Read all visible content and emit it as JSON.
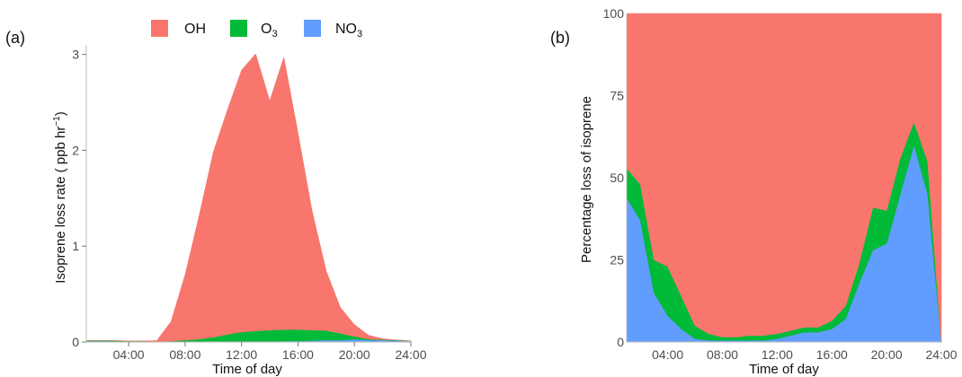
{
  "legend": {
    "entries": [
      {
        "label": "OH",
        "color": "#F8766D"
      },
      {
        "label": "O",
        "sub": "3",
        "color": "#00BA38"
      },
      {
        "label": "NO",
        "sub": "3",
        "color": "#619CFF"
      }
    ]
  },
  "chart_data": [
    {
      "panel_label": "(a)",
      "type": "area",
      "stacked": true,
      "xlabel": "Time of day",
      "ylabel": "Isoprene loss rate ( ppb hr",
      "ylabel_sup": "−1",
      "ylabel_end": ")",
      "x": [
        1,
        2,
        3,
        4,
        5,
        6,
        7,
        8,
        9,
        10,
        11,
        12,
        13,
        14,
        15,
        16,
        17,
        18,
        19,
        20,
        21,
        22,
        23,
        24
      ],
      "xlim": [
        1,
        24
      ],
      "ylim": [
        0,
        3.1
      ],
      "xticks": [
        4,
        8,
        12,
        16,
        20,
        24
      ],
      "xtick_labels": [
        "04:00",
        "08:00",
        "12:00",
        "16:00",
        "20:00",
        "24:00"
      ],
      "yticks": [
        0,
        1,
        2,
        3
      ],
      "ytick_labels": [
        "0",
        "1",
        "2",
        "3"
      ],
      "series": [
        {
          "name": "NO3",
          "color": "#619CFF",
          "values": [
            0.01,
            0.01,
            0.01,
            0.005,
            0.005,
            0,
            0,
            0,
            0,
            0,
            0,
            0.005,
            0.005,
            0.005,
            0.01,
            0.01,
            0.015,
            0.02,
            0.02,
            0.03,
            0.02,
            0.02,
            0.015,
            0.01
          ]
        },
        {
          "name": "O3",
          "color": "#00BA38",
          "values": [
            0.005,
            0.005,
            0.005,
            0.005,
            0.005,
            0.005,
            0.01,
            0.02,
            0.03,
            0.05,
            0.08,
            0.1,
            0.11,
            0.12,
            0.12,
            0.12,
            0.11,
            0.1,
            0.07,
            0.03,
            0.01,
            0.005,
            0.005,
            0
          ]
        },
        {
          "name": "OH",
          "color": "#F8766D",
          "values": [
            0,
            0,
            0,
            0,
            0,
            0.01,
            0.2,
            0.68,
            1.29,
            1.93,
            2.34,
            2.73,
            2.89,
            2.39,
            2.84,
            2.05,
            1.24,
            0.62,
            0.27,
            0.12,
            0.04,
            0.01,
            0,
            0
          ]
        }
      ]
    },
    {
      "panel_label": "(b)",
      "type": "area",
      "stacked": true,
      "xlabel": "Time of day",
      "ylabel": "Percentage loss of isoprene",
      "x": [
        1,
        2,
        3,
        4,
        5,
        6,
        7,
        8,
        9,
        10,
        11,
        12,
        13,
        14,
        15,
        16,
        17,
        18,
        19,
        20,
        21,
        22,
        23,
        24
      ],
      "xlim": [
        1,
        24
      ],
      "ylim": [
        0,
        100
      ],
      "xticks": [
        4,
        8,
        12,
        16,
        20,
        24
      ],
      "xtick_labels": [
        "04:00",
        "08:00",
        "12:00",
        "16:00",
        "20:00",
        "24:00"
      ],
      "yticks": [
        0,
        25,
        50,
        75,
        100
      ],
      "ytick_labels": [
        "0",
        "25",
        "50",
        "75",
        "100"
      ],
      "series": [
        {
          "name": "NO3",
          "color": "#619CFF",
          "values": [
            44,
            37,
            15,
            8,
            4,
            1,
            0.5,
            0.5,
            0.5,
            0.5,
            0.5,
            1,
            2,
            3,
            3,
            4,
            7,
            18,
            28,
            30,
            45,
            60,
            45,
            0
          ]
        },
        {
          "name": "O3",
          "color": "#00BA38",
          "values": [
            9,
            11,
            10,
            15,
            10,
            4,
            2,
            1,
            1,
            1.5,
            1.5,
            1.5,
            1.5,
            1.5,
            1.5,
            2.5,
            4,
            6,
            13,
            10,
            11,
            7,
            10,
            0
          ]
        },
        {
          "name": "OH",
          "color": "#F8766D",
          "values": [
            47,
            52,
            75,
            77,
            86,
            95,
            97.5,
            98.5,
            98.5,
            98,
            98,
            97.5,
            96.5,
            95.5,
            95.5,
            93.5,
            89,
            76,
            59,
            60,
            44,
            33,
            45,
            100
          ]
        }
      ]
    }
  ]
}
